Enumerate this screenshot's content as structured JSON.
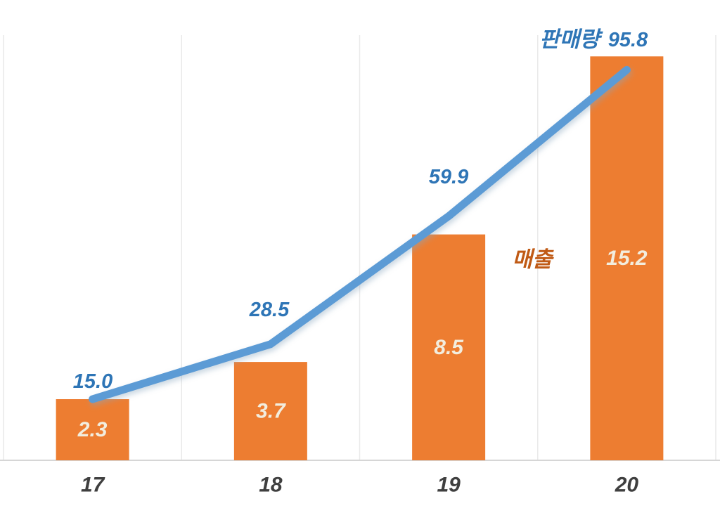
{
  "chart_data": {
    "type": "combo",
    "title": "",
    "categories": [
      "17",
      "18",
      "19",
      "20"
    ],
    "series": [
      {
        "name": "매출",
        "type": "bar",
        "values": [
          2.3,
          3.7,
          8.5,
          15.2
        ],
        "labels": [
          "2.3",
          "3.7",
          "8.5",
          "15.2"
        ],
        "color": "#ED7D31",
        "data_label_color": "#F2EDDE",
        "name_label_color": "#C05A15"
      },
      {
        "name": "판매량",
        "type": "line",
        "values": [
          15.0,
          28.5,
          59.9,
          95.8
        ],
        "labels": [
          "15.0",
          "28.5",
          "59.9",
          "95.8"
        ],
        "color": "#5B9BD5",
        "data_label_color": "#2E75B6",
        "name_label_color": "#2E75B6"
      }
    ],
    "axes": {
      "x": {
        "tick_labels": [
          "17",
          "18",
          "19",
          "20"
        ],
        "tick_color": "#3F3F3F"
      },
      "y": {
        "visible": false,
        "bar_axis_max_estimate": 16,
        "line_axis_max_estimate": 100
      }
    },
    "grid": {
      "vertical": true,
      "horizontal": false,
      "color": "#E9E9E9"
    },
    "axis_line_color": "#D6D6D6",
    "background": "#FFFFFF",
    "legend_position": "inline data labels (series names written next to series)"
  }
}
